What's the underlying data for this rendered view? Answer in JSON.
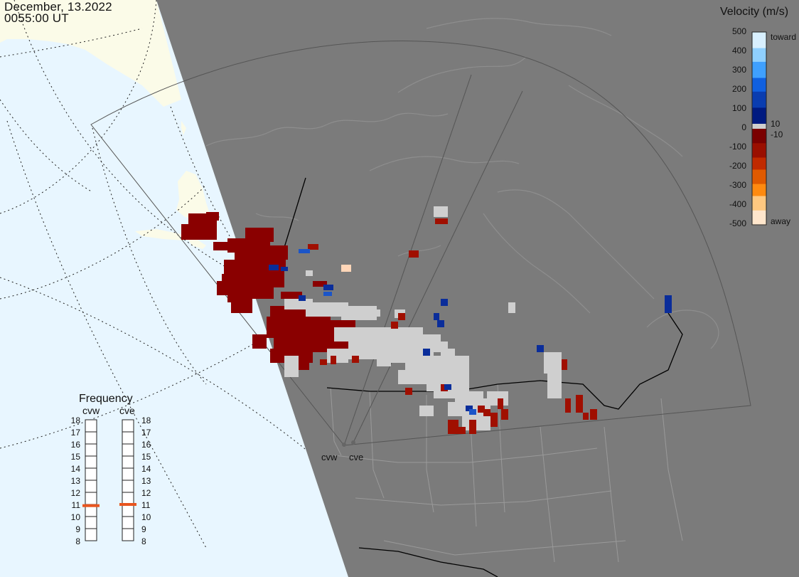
{
  "header": {
    "date": "December, 13.2022",
    "time": "0055:00 UT"
  },
  "velocity_scale": {
    "title": "Velocity (m/s)",
    "ticks": [
      "500",
      "400",
      "300",
      "200",
      "100",
      "0",
      "-100",
      "-200",
      "-300",
      "-400",
      "-500"
    ],
    "toward_label": "toward",
    "away_label": "away",
    "thresholds": [
      "10",
      "-10"
    ],
    "colors": {
      "toward": [
        "#d8f0ff",
        "#8fd0ff",
        "#3fa0ff",
        "#1060e0",
        "#0a3db0",
        "#001a80"
      ],
      "away": [
        "#7a0000",
        "#9a0f00",
        "#c02a00",
        "#e05a00",
        "#ff8a10",
        "#ffc880",
        "#ffe6cc"
      ],
      "ground_scatter": "#cfcfcf"
    }
  },
  "frequency": {
    "title": "Frequency",
    "radars": [
      "cvw",
      "cve"
    ],
    "ticks": [
      "18",
      "17",
      "16",
      "15",
      "14",
      "13",
      "12",
      "11",
      "10",
      "9",
      "8"
    ],
    "values_mhz": [
      10.9,
      11.0
    ]
  },
  "map_labels": {
    "radar_1": "cvw",
    "radar_2": "cve"
  },
  "colors": {
    "land_day": "#fbfbe8",
    "ocean_day": "#e8f6ff",
    "night": "#7b7b7b",
    "boundaries": "#999999",
    "border": "#000000",
    "accent": "#e8551f"
  }
}
